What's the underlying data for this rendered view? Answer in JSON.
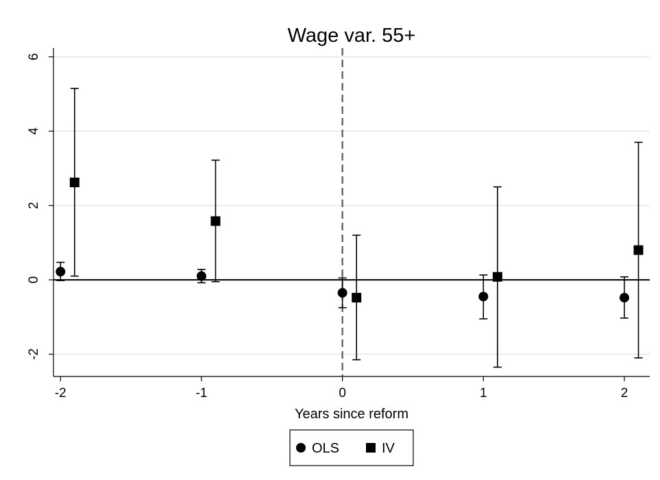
{
  "chart_data": {
    "type": "scatter",
    "title": "Wage var. 55+",
    "xlabel": "Years since reform",
    "ylabel": "",
    "xlim": [
      -2.05,
      2.18
    ],
    "ylim": [
      -2.6,
      6.2
    ],
    "x_ticks": [
      -2,
      -1,
      0,
      1,
      2
    ],
    "y_ticks": [
      -2,
      0,
      2,
      4,
      6
    ],
    "grid": true,
    "reference_lines": {
      "horizontal": 0,
      "vertical_dashed": 0
    },
    "legend_position": "bottom",
    "series": [
      {
        "name": "OLS",
        "marker": "circle",
        "x": [
          -2,
          -1,
          0,
          1,
          2
        ],
        "y": [
          0.22,
          0.1,
          -0.35,
          -0.45,
          -0.48
        ],
        "ci_low": [
          -0.02,
          -0.08,
          -0.75,
          -1.05,
          -1.03
        ],
        "ci_high": [
          0.47,
          0.28,
          0.05,
          0.13,
          0.08
        ]
      },
      {
        "name": "IV",
        "marker": "square",
        "x": [
          -1.9,
          -0.9,
          0.1,
          1.1,
          2.1
        ],
        "y": [
          2.62,
          1.58,
          -0.48,
          0.08,
          0.8
        ],
        "ci_low": [
          0.1,
          -0.05,
          -2.15,
          -2.35,
          -2.1
        ],
        "ci_high": [
          5.15,
          3.22,
          1.2,
          2.5,
          3.7
        ]
      }
    ],
    "colors": {
      "markers": "#000000",
      "grid": "#e6e6e6",
      "axis": "#000000"
    }
  }
}
